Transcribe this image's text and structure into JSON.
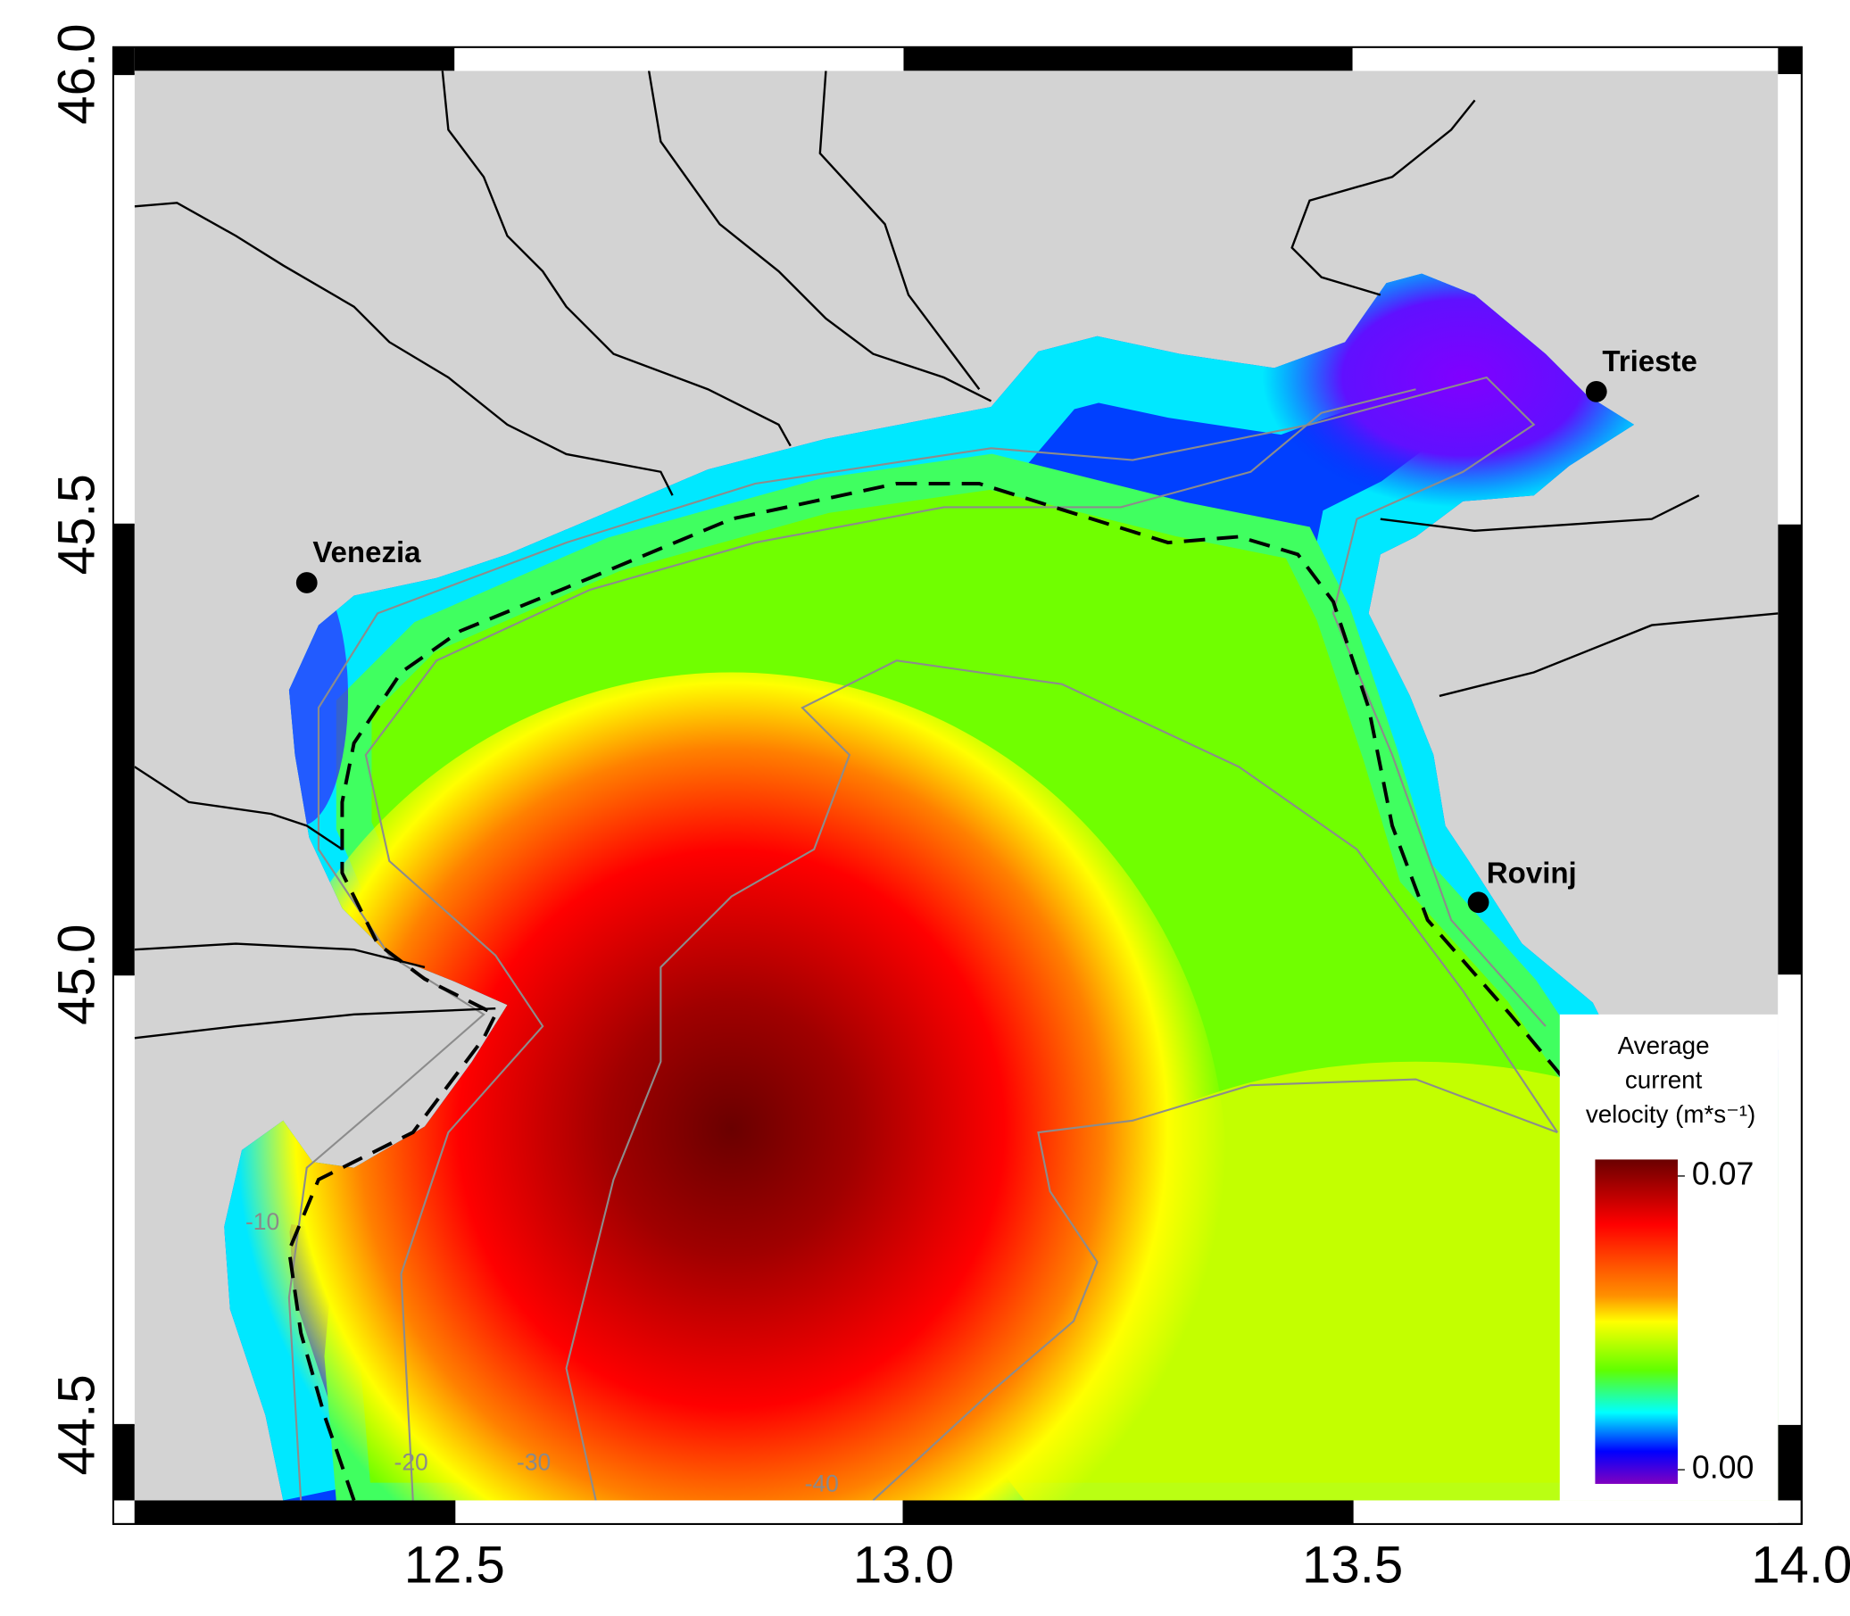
{
  "map": {
    "xlim": [
      12.12,
      14.0
    ],
    "ylim": [
      44.39,
      46.03
    ],
    "xticks": [
      12.5,
      {
        "value": 13,
        "label": "13.0"
      },
      13.5,
      {
        "value": 14,
        "label": "14.0"
      }
    ],
    "yticks": [
      {
        "value": 46,
        "label": "46.0"
      },
      45.5,
      {
        "value": 45,
        "label": "45.0"
      },
      44.5
    ],
    "cities": [
      "Venezia",
      "Trieste",
      "Rovinj"
    ],
    "contour_labels": [
      "-10",
      "-20",
      "-30",
      "-40"
    ],
    "legend": {
      "title_lines": [
        "Average",
        "current",
        "velocity (m*s⁻¹)"
      ],
      "vlim": [
        0,
        0.07
      ],
      "ticks": [
        0.07,
        {
          "value": 0,
          "label": "0.00"
        }
      ]
    }
  }
}
